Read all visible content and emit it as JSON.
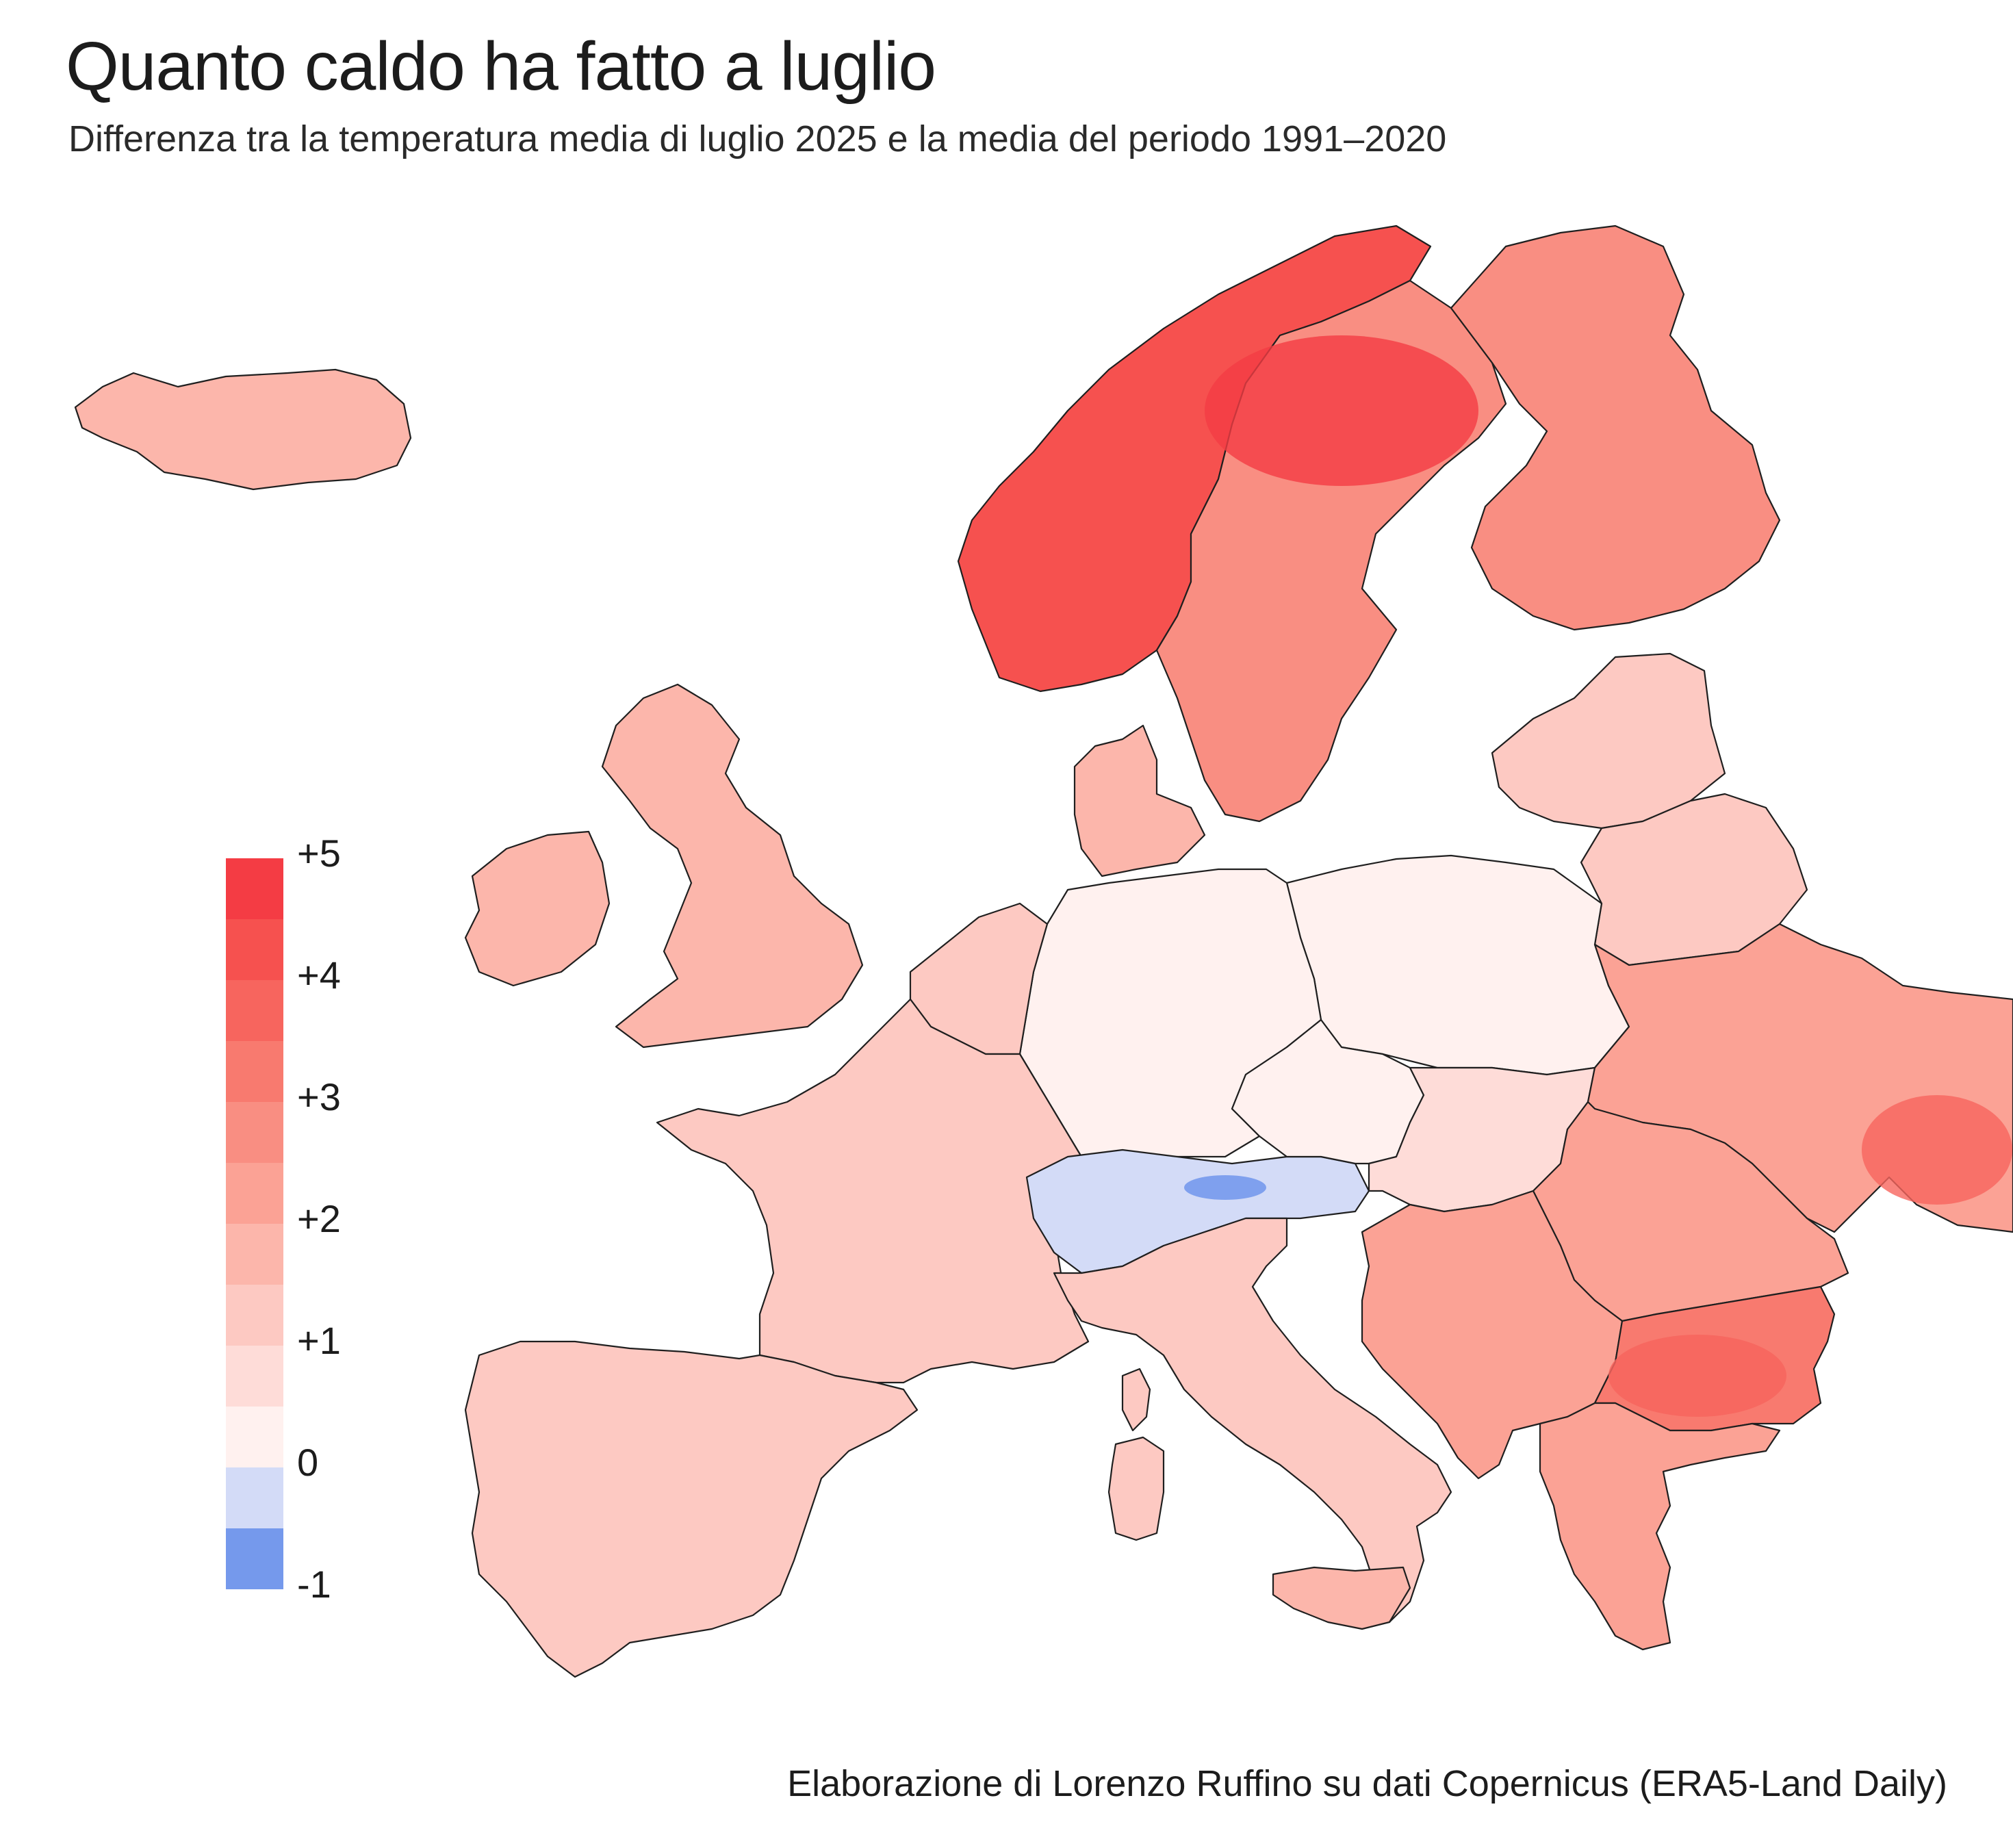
{
  "title": "Quanto caldo ha fatto a luglio",
  "subtitle": "Differenza tra la temperatura media di luglio 2025 e la media del periodo 1991–2020",
  "credit": "Elaborazione di Lorenzo Ruffino su dati Copernicus (ERA5-Land Daily)",
  "legend": {
    "ticks": [
      "+5",
      "+4",
      "+3",
      "+2",
      "+1",
      "0",
      "-1"
    ],
    "bins": [
      {
        "from": 4.5,
        "to": 5.0,
        "color": "#f43c44"
      },
      {
        "from": 4.0,
        "to": 4.5,
        "color": "#f6514f"
      },
      {
        "from": 3.5,
        "to": 4.0,
        "color": "#f7655e"
      },
      {
        "from": 3.0,
        "to": 3.5,
        "color": "#f87a6f"
      },
      {
        "from": 2.5,
        "to": 3.0,
        "color": "#f98e82"
      },
      {
        "from": 2.0,
        "to": 2.5,
        "color": "#fba295"
      },
      {
        "from": 1.5,
        "to": 2.0,
        "color": "#fcb6ab"
      },
      {
        "from": 1.0,
        "to": 1.5,
        "color": "#fdc9c2"
      },
      {
        "from": 0.5,
        "to": 1.0,
        "color": "#fedcd8"
      },
      {
        "from": 0.0,
        "to": 0.5,
        "color": "#fff1ef"
      },
      {
        "from": -0.5,
        "to": 0.0,
        "color": "#d3dbf7"
      },
      {
        "from": -1.0,
        "to": -0.5,
        "color": "#7599ec"
      }
    ]
  },
  "regions": [
    {
      "name": "Iceland",
      "color": "#fcb6ab"
    },
    {
      "name": "Norway",
      "color": "#f6514f"
    },
    {
      "name": "Sweden",
      "color": "#f98e82"
    },
    {
      "name": "Finland",
      "color": "#f98e82"
    },
    {
      "name": "Denmark",
      "color": "#fcb6ab"
    },
    {
      "name": "Ireland",
      "color": "#fcb6ab"
    },
    {
      "name": "Great Britain",
      "color": "#fcb6ab"
    },
    {
      "name": "Baltics",
      "color": "#fdc9c2"
    },
    {
      "name": "Belarus",
      "color": "#fdc9c2"
    },
    {
      "name": "Poland",
      "color": "#fff1ef"
    },
    {
      "name": "Germany",
      "color": "#fff1ef"
    },
    {
      "name": "Benelux",
      "color": "#fdc9c2"
    },
    {
      "name": "France",
      "color": "#fdc9c2"
    },
    {
      "name": "Iberia",
      "color": "#fdc9c2"
    },
    {
      "name": "Alps",
      "color": "#d3dbf7"
    },
    {
      "name": "Italy",
      "color": "#fdc9c2"
    },
    {
      "name": "Czechia-Austria",
      "color": "#fff1ef"
    },
    {
      "name": "Hungary-Slovakia",
      "color": "#fedcd8"
    },
    {
      "name": "Ukraine",
      "color": "#fba295"
    },
    {
      "name": "Romania",
      "color": "#fba295"
    },
    {
      "name": "Balkans",
      "color": "#fba295"
    },
    {
      "name": "Bulgaria",
      "color": "#f87a6f"
    },
    {
      "name": "Greece",
      "color": "#fba295"
    },
    {
      "name": "Sardinia",
      "color": "#fdc9c2"
    },
    {
      "name": "Corsica",
      "color": "#fdc9c2"
    },
    {
      "name": "Sicily",
      "color": "#fcb6ab"
    }
  ]
}
